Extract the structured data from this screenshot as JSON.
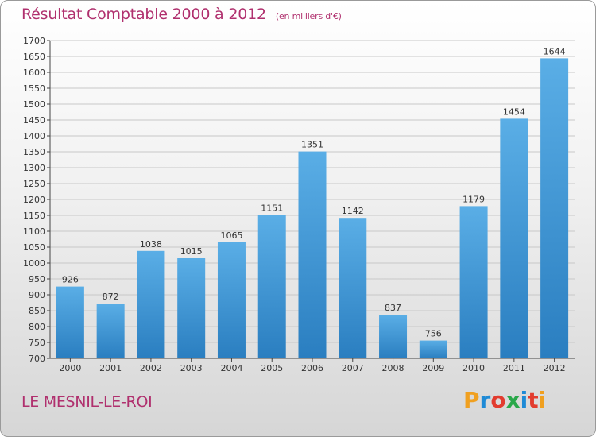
{
  "header": {
    "title": "Résultat Comptable 2000 à 2012",
    "subtitle": "(en milliers d'€)"
  },
  "footer": {
    "commune": "LE MESNIL-LE-ROI",
    "logo": {
      "letters": [
        "P",
        "r",
        "o",
        "x",
        "i",
        "t",
        "i"
      ],
      "colors": [
        "#f0a020",
        "#1e8ad6",
        "#e23c2f",
        "#2aa84a",
        "#1e8ad6",
        "#e23c2f",
        "#f0a020"
      ]
    }
  },
  "colors": {
    "bar_top": "#5aaee6",
    "bar_bottom": "#2a7ec0",
    "accent": "#b0306e"
  },
  "chart_data": {
    "type": "bar",
    "title": "Résultat Comptable 2000 à 2012",
    "subtitle": "(en milliers d'€)",
    "categories": [
      "2000",
      "2001",
      "2002",
      "2003",
      "2004",
      "2005",
      "2006",
      "2007",
      "2008",
      "2009",
      "2010",
      "2011",
      "2012"
    ],
    "values": [
      926,
      872,
      1038,
      1015,
      1065,
      1151,
      1351,
      1142,
      837,
      756,
      1179,
      1454,
      1644
    ],
    "ylim": [
      700,
      1700
    ],
    "ytick_step": 50,
    "grid": true,
    "data_labels": true
  }
}
